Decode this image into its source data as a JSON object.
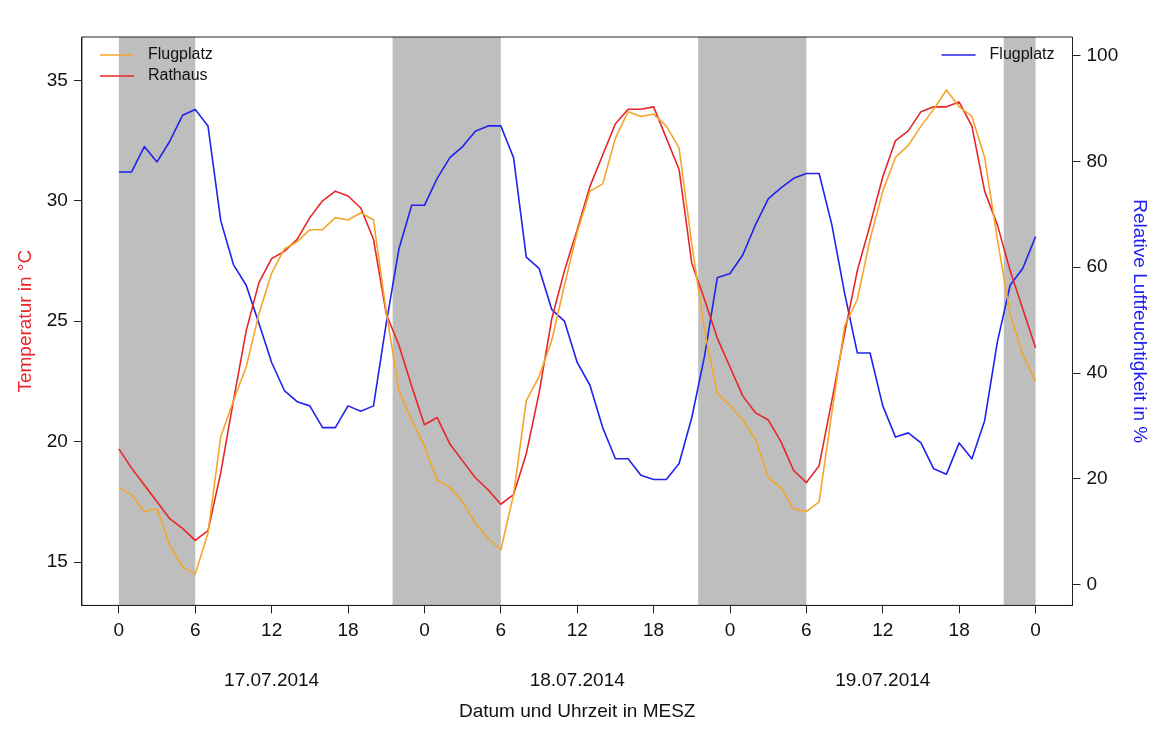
{
  "chart_data": {
    "type": "line",
    "xlabel": "Datum und Uhrzeit in MESZ",
    "ylabel": "Temperatur in °C",
    "y2label": "Relative Luftfeuchtigkeit in %",
    "x": [
      "2014-07-17T00:00",
      "2014-07-17T01:00",
      "2014-07-17T02:00",
      "2014-07-17T03:00",
      "2014-07-17T04:00",
      "2014-07-17T05:00",
      "2014-07-17T06:00",
      "2014-07-17T07:00",
      "2014-07-17T08:00",
      "2014-07-17T09:00",
      "2014-07-17T10:00",
      "2014-07-17T11:00",
      "2014-07-17T12:00",
      "2014-07-17T13:00",
      "2014-07-17T14:00",
      "2014-07-17T15:00",
      "2014-07-17T16:00",
      "2014-07-17T17:00",
      "2014-07-17T18:00",
      "2014-07-17T19:00",
      "2014-07-17T20:00",
      "2014-07-17T21:00",
      "2014-07-17T22:00",
      "2014-07-17T23:00",
      "2014-07-18T00:00",
      "2014-07-18T01:00",
      "2014-07-18T02:00",
      "2014-07-18T03:00",
      "2014-07-18T04:00",
      "2014-07-18T05:00",
      "2014-07-18T06:00",
      "2014-07-18T07:00",
      "2014-07-18T08:00",
      "2014-07-18T09:00",
      "2014-07-18T10:00",
      "2014-07-18T11:00",
      "2014-07-18T12:00",
      "2014-07-18T13:00",
      "2014-07-18T14:00",
      "2014-07-18T15:00",
      "2014-07-18T16:00",
      "2014-07-18T17:00",
      "2014-07-18T18:00",
      "2014-07-18T19:00",
      "2014-07-18T20:00",
      "2014-07-18T21:00",
      "2014-07-18T22:00",
      "2014-07-18T23:00",
      "2014-07-19T00:00",
      "2014-07-19T01:00",
      "2014-07-19T02:00",
      "2014-07-19T03:00",
      "2014-07-19T04:00",
      "2014-07-19T05:00",
      "2014-07-19T06:00",
      "2014-07-19T07:00",
      "2014-07-19T08:00",
      "2014-07-19T09:00",
      "2014-07-19T10:00",
      "2014-07-19T11:00",
      "2014-07-19T12:00",
      "2014-07-19T13:00",
      "2014-07-19T14:00",
      "2014-07-19T15:00",
      "2014-07-19T16:00",
      "2014-07-19T17:00",
      "2014-07-19T18:00",
      "2014-07-19T19:00",
      "2014-07-19T20:00",
      "2014-07-19T21:00",
      "2014-07-19T22:00",
      "2014-07-19T23:00",
      "2014-07-20T00:00"
    ],
    "series": [
      {
        "name": "Flugplatz",
        "color": "#f4a62a",
        "values": [
          18.1,
          17.8,
          17.1,
          17.2,
          15.7,
          14.8,
          14.5,
          16.2,
          20.2,
          21.7,
          23.1,
          25.3,
          27.0,
          28.0,
          28.3,
          28.8,
          28.8,
          29.3,
          29.2,
          29.5,
          29.2,
          25.4,
          22.1,
          20.9,
          19.8,
          18.4,
          18.1,
          17.5,
          16.6,
          16.0,
          15.5,
          17.8,
          21.7,
          22.7,
          24.2,
          26.5,
          28.7,
          30.4,
          30.7,
          32.6,
          33.7,
          33.5,
          33.6,
          33.1,
          32.2,
          28.2,
          24.6,
          22.0,
          21.5,
          20.9,
          20.1,
          18.5,
          18.1,
          17.2,
          17.1,
          17.5,
          21.2,
          24.8,
          25.9,
          28.4,
          30.4,
          31.8,
          32.3,
          33.1,
          33.8,
          34.6,
          33.9,
          33.5,
          31.8,
          28.4,
          25.3,
          23.6,
          22.5
        ]
      },
      {
        "name": "Rathaus",
        "color": "#e8262a",
        "values": [
          19.7,
          18.9,
          18.2,
          17.5,
          16.8,
          16.4,
          15.9,
          16.3,
          18.7,
          21.7,
          24.6,
          26.6,
          27.6,
          27.9,
          28.4,
          29.3,
          30.0,
          30.4,
          30.2,
          29.7,
          28.4,
          25.3,
          24.0,
          22.3,
          20.7,
          21.0,
          19.9,
          19.2,
          18.5,
          18.0,
          17.4,
          17.8,
          19.5,
          22.0,
          25.1,
          27.1,
          28.8,
          30.6,
          31.9,
          33.2,
          33.8,
          33.8,
          33.9,
          32.6,
          31.3,
          27.4,
          25.9,
          24.3,
          23.1,
          21.9,
          21.2,
          20.9,
          20.0,
          18.8,
          18.3,
          19.0,
          21.7,
          24.5,
          27.1,
          29.0,
          31.0,
          32.5,
          32.9,
          33.7,
          33.9,
          33.9,
          34.1,
          33.1,
          30.4,
          29.0,
          27.1,
          25.5,
          23.9
        ]
      },
      {
        "name": "Flugplatz",
        "color": "#2222ee",
        "axis": "y2",
        "values": [
          78,
          78,
          82.8,
          79.9,
          83.8,
          88.7,
          89.8,
          86.7,
          68.8,
          60.5,
          56.6,
          49.4,
          42.0,
          36.7,
          34.6,
          33.8,
          29.7,
          29.7,
          33.8,
          32.8,
          33.8,
          49.4,
          63.5,
          71.7,
          71.7,
          76.8,
          80.7,
          82.8,
          85.7,
          86.7,
          86.7,
          80.7,
          61.9,
          59.8,
          52.0,
          49.8,
          42.0,
          37.7,
          29.7,
          23.8,
          23.8,
          20.7,
          19.9,
          19.9,
          22.9,
          31.6,
          43.2,
          58.0,
          58.8,
          62.3,
          68.0,
          72.9,
          75.0,
          76.8,
          77.7,
          77.7,
          68.0,
          55.1,
          43.8,
          43.8,
          33.8,
          27.9,
          28.7,
          26.8,
          21.9,
          20.9,
          26.8,
          23.8,
          31.0,
          45.9,
          56.6,
          59.8,
          65.8
        ]
      }
    ],
    "xlim": [
      "2014-07-16T21:06",
      "2014-07-20T02:54"
    ],
    "xticks": [
      {
        "value": "2014-07-17T00:00",
        "label": "0"
      },
      {
        "value": "2014-07-17T06:00",
        "label": "6"
      },
      {
        "value": "2014-07-17T12:00",
        "label": "12"
      },
      {
        "value": "2014-07-17T18:00",
        "label": "18"
      },
      {
        "value": "2014-07-18T00:00",
        "label": "0"
      },
      {
        "value": "2014-07-18T06:00",
        "label": "6"
      },
      {
        "value": "2014-07-18T12:00",
        "label": "12"
      },
      {
        "value": "2014-07-18T18:00",
        "label": "18"
      },
      {
        "value": "2014-07-19T00:00",
        "label": "0"
      },
      {
        "value": "2014-07-19T06:00",
        "label": "6"
      },
      {
        "value": "2014-07-19T12:00",
        "label": "12"
      },
      {
        "value": "2014-07-19T18:00",
        "label": "18"
      },
      {
        "value": "2014-07-20T00:00",
        "label": "0"
      }
    ],
    "ylim": [
      13.2,
      36.8
    ],
    "yticks": [
      15,
      20,
      25,
      30,
      35
    ],
    "y2lim": [
      -3.9,
      103.5
    ],
    "y2ticks": [
      0,
      20,
      40,
      60,
      80,
      100
    ],
    "bands": [
      {
        "axis": "x",
        "from": "2014-07-17T00:00",
        "to": "2014-07-17T06:00",
        "color": "#bebebe"
      },
      {
        "axis": "x",
        "from": "2014-07-17T21:30",
        "to": "2014-07-18T06:00",
        "color": "#bebebe"
      },
      {
        "axis": "x",
        "from": "2014-07-18T21:30",
        "to": "2014-07-19T06:00",
        "color": "#bebebe"
      },
      {
        "axis": "x",
        "from": "2014-07-19T21:30",
        "to": "2014-07-20T00:00",
        "color": "#bebebe"
      }
    ],
    "annotations": [
      "17.07.2014",
      "18.07.2014",
      "19.07.2014"
    ],
    "legend": "top left",
    "grid": false,
    "marker": "none",
    "line_style": "solid"
  }
}
